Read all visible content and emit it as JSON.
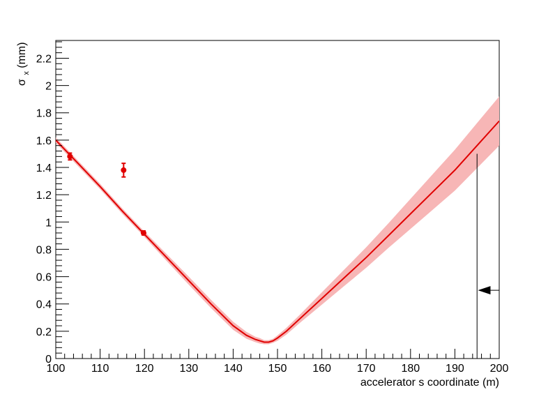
{
  "chart_data": {
    "type": "line",
    "xlabel": "accelerator s coordinate (m)",
    "ylabel_main": "σ",
    "ylabel_sub": "x",
    "ylabel_unit": " (mm)",
    "xlim": [
      100,
      200
    ],
    "ylim": [
      0,
      2.33
    ],
    "grid": false,
    "x_ticks": [
      100,
      110,
      120,
      130,
      140,
      150,
      160,
      170,
      180,
      190,
      200
    ],
    "y_ticks": [
      0,
      0.2,
      0.4,
      0.6,
      0.8,
      1,
      1.2,
      1.4,
      1.6,
      1.8,
      2,
      2.2
    ],
    "series": [
      {
        "kind": "fit",
        "color": "#e00000",
        "band_color": "#f7b6b6",
        "x": [
          100,
          105,
          110,
          115,
          120,
          125,
          130,
          135,
          140,
          143,
          145,
          146,
          147,
          148,
          149,
          150,
          152,
          155,
          160,
          165,
          170,
          175,
          180,
          185,
          190,
          195,
          200
        ],
        "y": [
          1.6,
          1.43,
          1.26,
          1.08,
          0.91,
          0.74,
          0.57,
          0.4,
          0.24,
          0.17,
          0.14,
          0.13,
          0.12,
          0.12,
          0.13,
          0.15,
          0.2,
          0.29,
          0.44,
          0.59,
          0.74,
          0.9,
          1.06,
          1.22,
          1.38,
          1.56,
          1.74
        ],
        "band_halfwidth": [
          0.02,
          0.02,
          0.02,
          0.02,
          0.02,
          0.025,
          0.03,
          0.03,
          0.03,
          0.025,
          0.02,
          0.02,
          0.015,
          0.015,
          0.015,
          0.02,
          0.025,
          0.03,
          0.045,
          0.06,
          0.075,
          0.09,
          0.11,
          0.13,
          0.15,
          0.165,
          0.18
        ]
      },
      {
        "kind": "points",
        "color": "#e00000",
        "x": [
          103.2,
          115.3,
          119.8
        ],
        "y": [
          1.48,
          1.38,
          0.92
        ],
        "yerr": [
          0.025,
          0.05,
          0.015
        ]
      }
    ],
    "annotations": [
      {
        "kind": "vline",
        "x": 195,
        "y_top": 1.5,
        "y_bottom": 0,
        "color": "#000000"
      },
      {
        "kind": "arrow",
        "x_from": 200,
        "x_to": 195.2,
        "y": 0.5,
        "color": "#000000"
      }
    ]
  }
}
